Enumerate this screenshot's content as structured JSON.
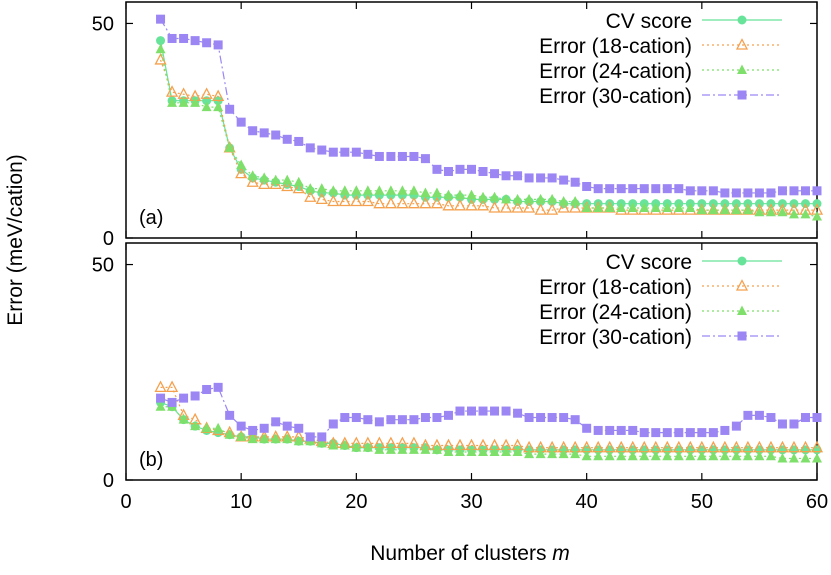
{
  "figure": {
    "ylabel": "Error (meV/cation)",
    "xlabel_prefix": "Number of clusters ",
    "xlabel_var": "m"
  },
  "chart_data": [
    {
      "type": "line",
      "panel_label": "(a)",
      "xlim": [
        0,
        60
      ],
      "ylim": [
        0,
        55
      ],
      "x_ticks": [
        0,
        10,
        20,
        30,
        40,
        50,
        60
      ],
      "y_ticks": [
        0,
        50
      ],
      "legend_position": "top-right",
      "series": [
        {
          "name": "CV score",
          "color": "#67e39a",
          "marker": "circle",
          "dash": "solid",
          "x": [
            3,
            4,
            5,
            6,
            7,
            8,
            9,
            10,
            11,
            12,
            13,
            14,
            15,
            16,
            17,
            18,
            19,
            20,
            21,
            22,
            23,
            24,
            25,
            26,
            27,
            28,
            29,
            30,
            31,
            32,
            33,
            34,
            35,
            36,
            37,
            38,
            39,
            40,
            41,
            42,
            43,
            44,
            45,
            46,
            47,
            48,
            49,
            50,
            51,
            52,
            53,
            54,
            55,
            56,
            57,
            58,
            59,
            60
          ],
          "values": [
            46,
            32,
            32,
            32,
            32,
            32,
            21,
            16,
            14,
            13.5,
            13,
            12.5,
            12,
            11,
            10.5,
            10.5,
            10,
            10,
            10,
            10,
            10,
            10,
            10,
            9.5,
            9.5,
            9.5,
            9.5,
            9,
            9,
            9,
            9,
            8.5,
            8.5,
            8.5,
            8.5,
            8,
            8,
            8,
            8,
            8,
            8,
            8,
            8,
            8,
            8,
            8,
            8,
            8,
            8,
            8,
            8,
            8,
            8,
            8,
            8,
            8,
            8,
            8
          ]
        },
        {
          "name": "Error (18-cation)",
          "color": "#f5a04d",
          "marker": "triangle-open",
          "dash": "dotted",
          "x": [
            3,
            4,
            5,
            6,
            7,
            8,
            9,
            10,
            11,
            12,
            13,
            14,
            15,
            16,
            17,
            18,
            19,
            20,
            21,
            22,
            23,
            24,
            25,
            26,
            27,
            28,
            29,
            30,
            31,
            32,
            33,
            34,
            35,
            36,
            37,
            38,
            39,
            40,
            41,
            42,
            43,
            44,
            45,
            46,
            47,
            48,
            49,
            50,
            51,
            52,
            53,
            54,
            55,
            56,
            57,
            58,
            59,
            60
          ],
          "values": [
            41.5,
            34,
            33.5,
            33,
            33.5,
            33,
            21,
            15,
            13,
            12.5,
            12.5,
            12,
            11.5,
            9.5,
            9,
            8.5,
            8.5,
            8.5,
            8.5,
            8,
            8,
            8,
            8,
            8,
            8,
            7.5,
            7.5,
            7.5,
            7.5,
            7,
            7,
            7,
            7,
            6.5,
            6.5,
            7,
            7,
            7,
            7,
            7,
            6.5,
            6.5,
            6.5,
            6.5,
            6.5,
            6.5,
            6.5,
            6.5,
            6.5,
            6.5,
            6.5,
            6.5,
            6.5,
            6.5,
            6.5,
            6.5,
            6.5,
            6.5
          ]
        },
        {
          "name": "Error (24-cation)",
          "color": "#7ee06a",
          "marker": "triangle",
          "dash": "dotted",
          "x": [
            3,
            4,
            5,
            6,
            7,
            8,
            9,
            10,
            11,
            12,
            13,
            14,
            15,
            16,
            17,
            18,
            19,
            20,
            21,
            22,
            23,
            24,
            25,
            26,
            27,
            28,
            29,
            30,
            31,
            32,
            33,
            34,
            35,
            36,
            37,
            38,
            39,
            40,
            41,
            42,
            43,
            44,
            45,
            46,
            47,
            48,
            49,
            50,
            51,
            52,
            53,
            54,
            55,
            56,
            57,
            58,
            59,
            60
          ],
          "values": [
            44,
            31.5,
            31.5,
            31.5,
            30.5,
            30.5,
            21,
            17,
            14.5,
            14,
            13.5,
            13.5,
            13,
            11.5,
            11.5,
            11,
            11,
            11,
            11,
            11,
            11,
            11,
            11,
            10.5,
            10.5,
            10,
            10,
            10,
            9.5,
            9.5,
            9,
            9,
            9,
            9,
            9,
            8.5,
            8.5,
            7,
            7,
            7,
            7,
            7,
            7,
            7,
            7,
            7,
            7,
            6.5,
            6.5,
            6.5,
            6.5,
            6.5,
            6,
            6,
            6,
            5.5,
            5.5,
            5
          ]
        },
        {
          "name": "Error (30-cation)",
          "color": "#9c86f4",
          "marker": "square",
          "dash": "dashdot",
          "x": [
            3,
            4,
            5,
            6,
            7,
            8,
            9,
            10,
            11,
            12,
            13,
            14,
            15,
            16,
            17,
            18,
            19,
            20,
            21,
            22,
            23,
            24,
            25,
            26,
            27,
            28,
            29,
            30,
            31,
            32,
            33,
            34,
            35,
            36,
            37,
            38,
            39,
            40,
            41,
            42,
            43,
            44,
            45,
            46,
            47,
            48,
            49,
            50,
            51,
            52,
            53,
            54,
            55,
            56,
            57,
            58,
            59,
            60
          ],
          "values": [
            51,
            46.5,
            46.5,
            46,
            45.5,
            45,
            30,
            27,
            25,
            24.5,
            24,
            23,
            22.5,
            21,
            20.5,
            20,
            20,
            20,
            19.5,
            19,
            19,
            19,
            19,
            18.5,
            16,
            15.5,
            16,
            16,
            15.5,
            15,
            14.5,
            14.5,
            14,
            14,
            14,
            13.5,
            13,
            12,
            11.5,
            11.5,
            11.5,
            11.5,
            11.5,
            11.5,
            11.5,
            11.5,
            11,
            11,
            11,
            10.5,
            10.5,
            10.5,
            10.5,
            10.5,
            11,
            11,
            11,
            11
          ]
        }
      ]
    },
    {
      "type": "line",
      "panel_label": "(b)",
      "xlim": [
        0,
        60
      ],
      "ylim": [
        0,
        55
      ],
      "x_ticks": [
        0,
        10,
        20,
        30,
        40,
        50,
        60
      ],
      "y_ticks": [
        0,
        50
      ],
      "legend_position": "top-right",
      "series": [
        {
          "name": "CV score",
          "color": "#67e39a",
          "marker": "circle",
          "dash": "solid",
          "x": [
            3,
            4,
            5,
            6,
            7,
            8,
            9,
            10,
            11,
            12,
            13,
            14,
            15,
            16,
            17,
            18,
            19,
            20,
            21,
            22,
            23,
            24,
            25,
            26,
            27,
            28,
            29,
            30,
            31,
            32,
            33,
            34,
            35,
            36,
            37,
            38,
            39,
            40,
            41,
            42,
            43,
            44,
            45,
            46,
            47,
            48,
            49,
            50,
            51,
            52,
            53,
            54,
            55,
            56,
            57,
            58,
            59,
            60
          ],
          "values": [
            18,
            17,
            14,
            12.5,
            11.5,
            11,
            10.5,
            10,
            10,
            9.5,
            9.5,
            9.5,
            9,
            9,
            8.5,
            8.5,
            8,
            7.5,
            7.5,
            7.5,
            7.5,
            7.5,
            7.5,
            7.5,
            7,
            7,
            7,
            7,
            7,
            7,
            7,
            7,
            7,
            7,
            7,
            7,
            7,
            7,
            7,
            7,
            7,
            7,
            7,
            7,
            7,
            7,
            7,
            7,
            7,
            7,
            7,
            7,
            7,
            7,
            7,
            7,
            7,
            7
          ]
        },
        {
          "name": "Error (18-cation)",
          "color": "#f5a04d",
          "marker": "triangle-open",
          "dash": "dotted",
          "x": [
            3,
            4,
            5,
            6,
            7,
            8,
            9,
            10,
            11,
            12,
            13,
            14,
            15,
            16,
            17,
            18,
            19,
            20,
            21,
            22,
            23,
            24,
            25,
            26,
            27,
            28,
            29,
            30,
            31,
            32,
            33,
            34,
            35,
            36,
            37,
            38,
            39,
            40,
            41,
            42,
            43,
            44,
            45,
            46,
            47,
            48,
            49,
            50,
            51,
            52,
            53,
            54,
            55,
            56,
            57,
            58,
            59,
            60
          ],
          "values": [
            21.5,
            21.5,
            15,
            14,
            12,
            11.5,
            11,
            10,
            10,
            10,
            10,
            10,
            10,
            9.5,
            9,
            8.5,
            8.5,
            8.5,
            8.5,
            8.5,
            8.5,
            8.5,
            8.5,
            8,
            8,
            8,
            8,
            8,
            8,
            8,
            8,
            8,
            7.5,
            7.5,
            7.5,
            7.5,
            7.5,
            7.5,
            7.5,
            7.5,
            7.5,
            7.5,
            7.5,
            7.5,
            7.5,
            7.5,
            7.5,
            7.5,
            7.5,
            7.5,
            7.5,
            7.5,
            7.5,
            7.5,
            7.5,
            7.5,
            7.5,
            7.5
          ]
        },
        {
          "name": "Error (24-cation)",
          "color": "#7ee06a",
          "marker": "triangle",
          "dash": "dotted",
          "x": [
            3,
            4,
            5,
            6,
            7,
            8,
            9,
            10,
            11,
            12,
            13,
            14,
            15,
            16,
            17,
            18,
            19,
            20,
            21,
            22,
            23,
            24,
            25,
            26,
            27,
            28,
            29,
            30,
            31,
            32,
            33,
            34,
            35,
            36,
            37,
            38,
            39,
            40,
            41,
            42,
            43,
            44,
            45,
            46,
            47,
            48,
            49,
            50,
            51,
            52,
            53,
            54,
            55,
            56,
            57,
            58,
            59,
            60
          ],
          "values": [
            17,
            17,
            14,
            12.5,
            12,
            12,
            10.5,
            10,
            9.5,
            9.5,
            9.5,
            9.5,
            9,
            9,
            8.5,
            8,
            8,
            7.5,
            7.5,
            7,
            7,
            7,
            7,
            7,
            7,
            6.5,
            6.5,
            6.5,
            6.5,
            6.5,
            6.5,
            6.5,
            6,
            6,
            6,
            6,
            6,
            5.5,
            5.5,
            5.5,
            5.5,
            5.5,
            5.5,
            5.5,
            5.5,
            5.5,
            5.5,
            5.5,
            5.5,
            5.5,
            5.5,
            5.5,
            5.5,
            5.5,
            5,
            5,
            5,
            5
          ]
        },
        {
          "name": "Error (30-cation)",
          "color": "#9c86f4",
          "marker": "square",
          "dash": "dashdot",
          "x": [
            3,
            4,
            5,
            6,
            7,
            8,
            9,
            10,
            11,
            12,
            13,
            14,
            15,
            16,
            17,
            18,
            19,
            20,
            21,
            22,
            23,
            24,
            25,
            26,
            27,
            28,
            29,
            30,
            31,
            32,
            33,
            34,
            35,
            36,
            37,
            38,
            39,
            40,
            41,
            42,
            43,
            44,
            45,
            46,
            47,
            48,
            49,
            50,
            51,
            52,
            53,
            54,
            55,
            56,
            57,
            58,
            59,
            60
          ],
          "values": [
            19,
            18,
            19,
            19.5,
            21,
            21.5,
            15,
            12.5,
            11.5,
            12,
            13.5,
            12.5,
            12,
            10,
            10,
            13,
            14.5,
            14.5,
            14,
            13.5,
            14,
            14,
            14,
            14.5,
            14.5,
            15,
            16,
            16,
            16,
            16,
            16,
            15.5,
            14.5,
            14.5,
            14.5,
            14.5,
            14,
            12,
            11.5,
            11.5,
            11.5,
            11.5,
            11,
            11,
            11,
            11,
            11,
            11,
            11,
            11.5,
            12.5,
            15,
            15,
            14.5,
            13,
            13,
            14.5,
            14.5
          ]
        }
      ]
    }
  ]
}
